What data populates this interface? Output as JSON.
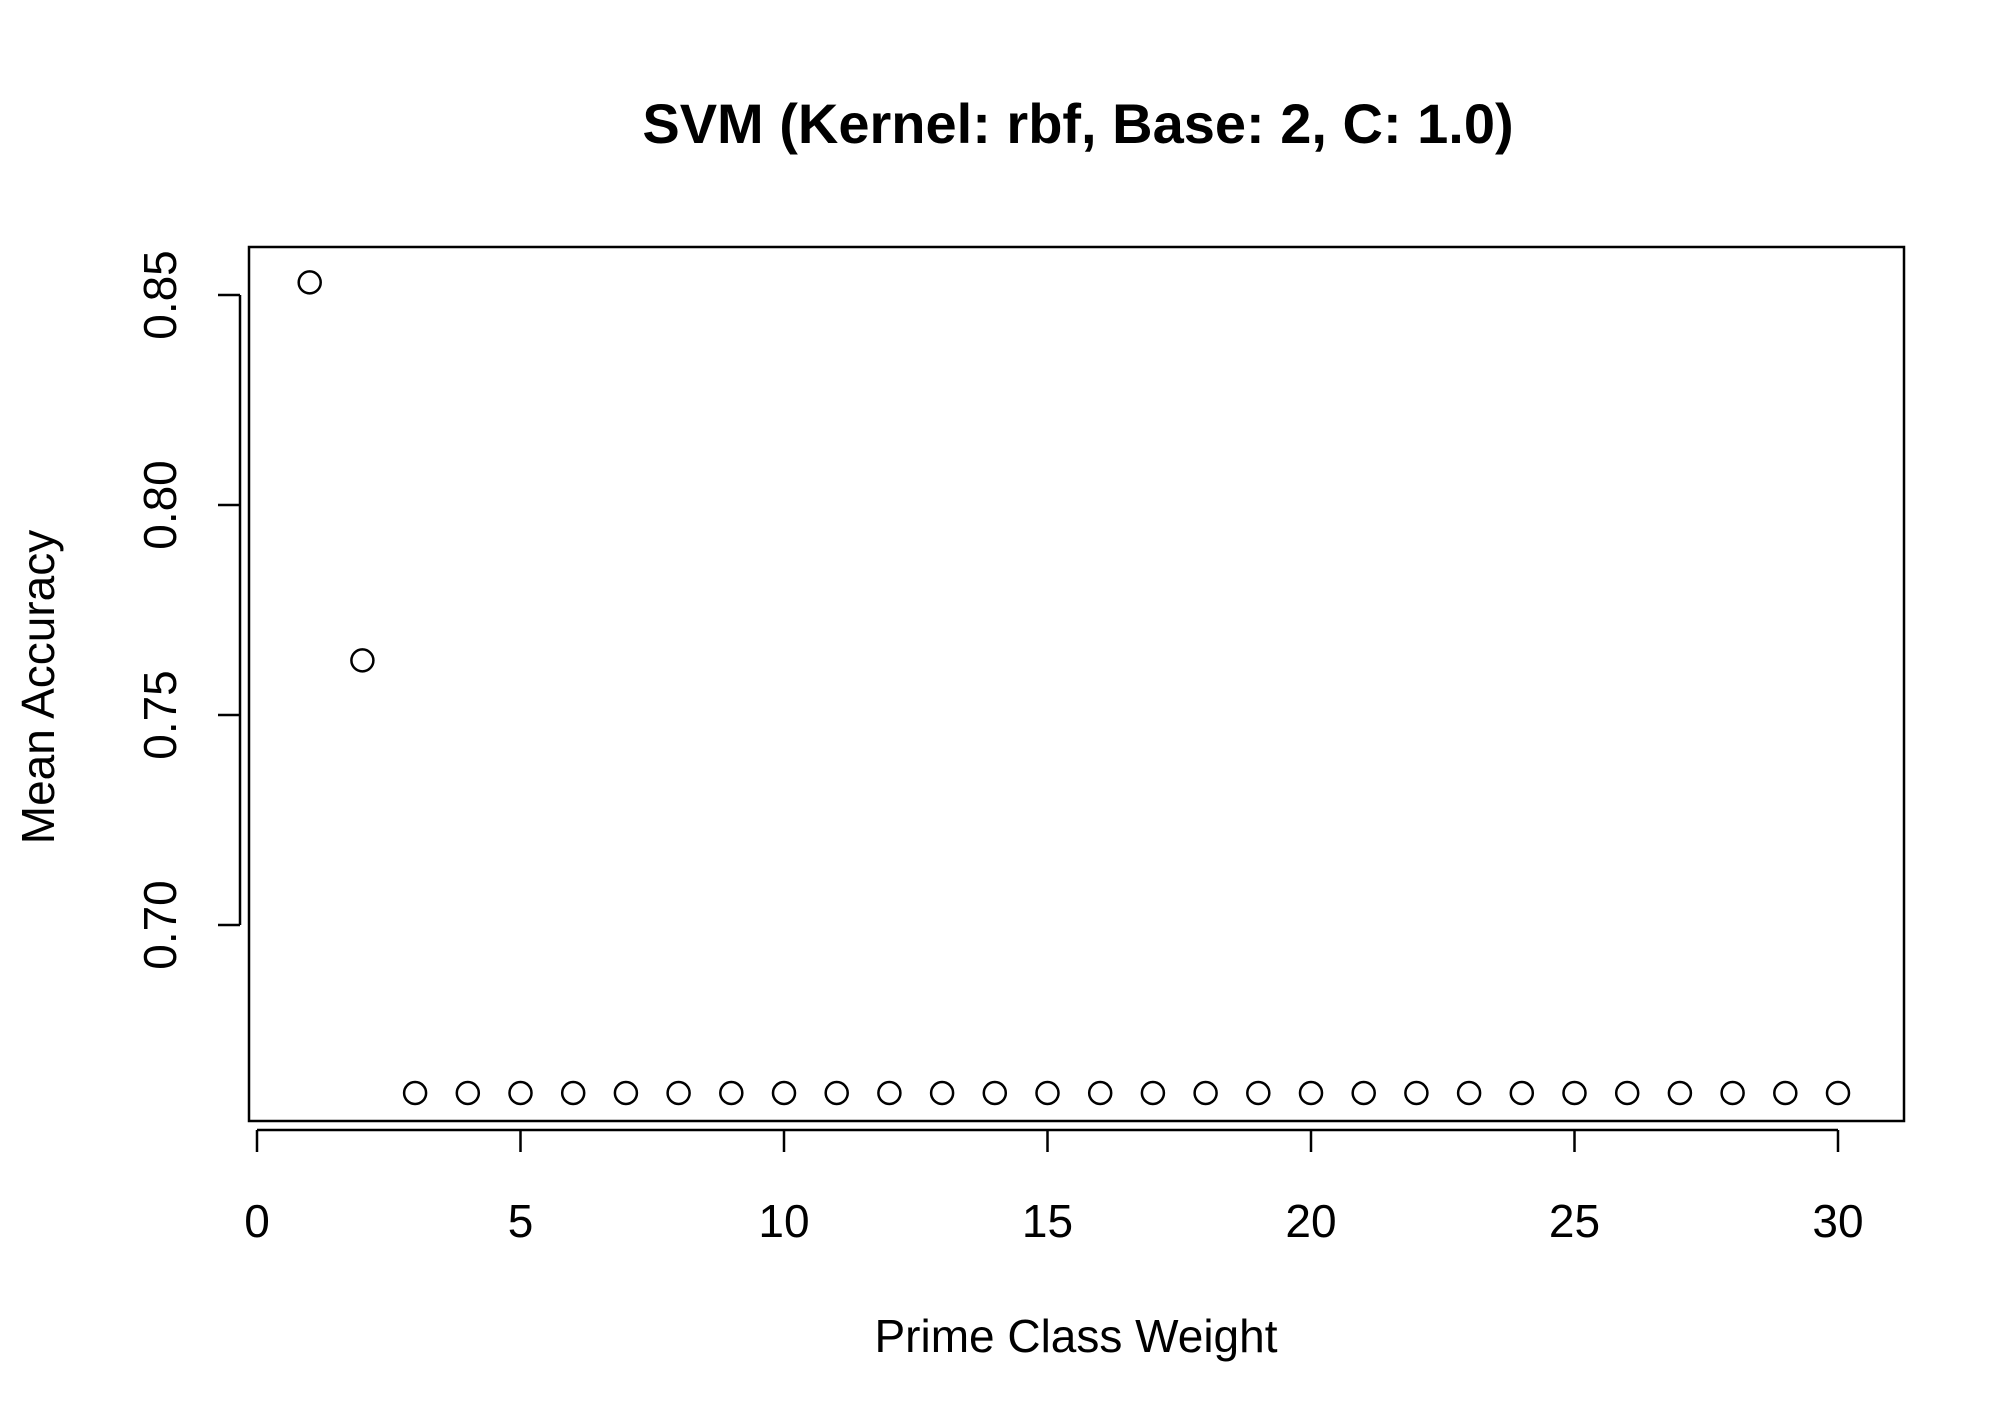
{
  "chart_data": {
    "type": "scatter",
    "title": "SVM (Kernel: rbf, Base: 2, C: 1.0)",
    "xlabel": "Prime Class Weight",
    "ylabel": "Mean Accuracy",
    "xlim": [
      0,
      30
    ],
    "ylim": [
      0.66,
      0.86
    ],
    "x_ticks": [
      0,
      5,
      10,
      15,
      20,
      25,
      30
    ],
    "x_tick_labels": [
      "0",
      "5",
      "10",
      "15",
      "20",
      "25",
      "30"
    ],
    "y_ticks": [
      0.7,
      0.75,
      0.8,
      0.85
    ],
    "y_tick_labels": [
      "0.70",
      "0.75",
      "0.80",
      "0.85"
    ],
    "grid": false,
    "marker": "open-circle",
    "series": [
      {
        "x": [
          1,
          2,
          3,
          4,
          5,
          6,
          7,
          8,
          9,
          10,
          11,
          12,
          13,
          14,
          15,
          16,
          17,
          18,
          19,
          20,
          21,
          22,
          23,
          24,
          25,
          26,
          27,
          28,
          29,
          30
        ],
        "y": [
          0.853,
          0.763,
          0.66,
          0.66,
          0.66,
          0.66,
          0.66,
          0.66,
          0.66,
          0.66,
          0.66,
          0.66,
          0.66,
          0.66,
          0.66,
          0.66,
          0.66,
          0.66,
          0.66,
          0.66,
          0.66,
          0.66,
          0.66,
          0.66,
          0.66,
          0.66,
          0.66,
          0.66,
          0.66,
          0.66
        ]
      }
    ]
  }
}
